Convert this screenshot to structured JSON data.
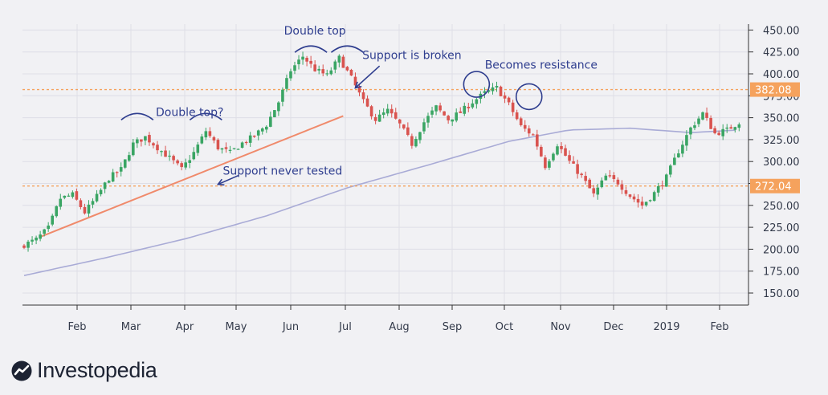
{
  "chart_data": {
    "type": "candlestick",
    "x_ticks": [
      "Feb",
      "Mar",
      "Apr",
      "May",
      "Jun",
      "Jul",
      "Aug",
      "Sep",
      "Oct",
      "Nov",
      "Dec",
      "2019",
      "Feb"
    ],
    "y_ticks": [
      "150.00",
      "175.00",
      "200.00",
      "225.00",
      "250.00",
      "275.00",
      "300.00",
      "325.00",
      "350.00",
      "375.00",
      "400.00",
      "425.00",
      "450.00"
    ],
    "ylim": [
      140,
      460
    ],
    "grid": true,
    "axis_position": "right",
    "price_levels": [
      {
        "label": "382.08",
        "value": 382.08,
        "color": "#f5a25d"
      },
      {
        "label": "272.04",
        "value": 272.04,
        "color": "#f5a25d"
      }
    ],
    "close_path": [
      [
        0,
        205
      ],
      [
        3,
        211
      ],
      [
        6,
        224
      ],
      [
        9,
        258
      ],
      [
        12,
        262
      ],
      [
        15,
        242
      ],
      [
        18,
        260
      ],
      [
        21,
        281
      ],
      [
        24,
        291
      ],
      [
        27,
        320
      ],
      [
        30,
        328
      ],
      [
        33,
        316
      ],
      [
        36,
        304
      ],
      [
        39,
        291
      ],
      [
        42,
        310
      ],
      [
        45,
        335
      ],
      [
        48,
        316
      ],
      [
        51,
        310
      ],
      [
        54,
        321
      ],
      [
        57,
        329
      ],
      [
        60,
        342
      ],
      [
        63,
        368
      ],
      [
        66,
        404
      ],
      [
        69,
        420
      ],
      [
        72,
        405
      ],
      [
        75,
        398
      ],
      [
        78,
        418
      ],
      [
        81,
        395
      ],
      [
        84,
        368
      ],
      [
        87,
        348
      ],
      [
        90,
        358
      ],
      [
        93,
        342
      ],
      [
        96,
        320
      ],
      [
        99,
        345
      ],
      [
        102,
        362
      ],
      [
        105,
        348
      ],
      [
        108,
        356
      ],
      [
        111,
        368
      ],
      [
        114,
        378
      ],
      [
        117,
        384
      ],
      [
        120,
        365
      ],
      [
        123,
        340
      ],
      [
        126,
        330
      ],
      [
        129,
        295
      ],
      [
        132,
        320
      ],
      [
        135,
        300
      ],
      [
        138,
        283
      ],
      [
        141,
        262
      ],
      [
        144,
        283
      ],
      [
        147,
        276
      ],
      [
        150,
        261
      ],
      [
        153,
        250
      ],
      [
        156,
        264
      ],
      [
        159,
        282
      ],
      [
        162,
        312
      ],
      [
        165,
        338
      ],
      [
        168,
        355
      ],
      [
        171,
        332
      ],
      [
        174,
        336
      ],
      [
        177,
        345
      ]
    ],
    "moving_average": [
      [
        0,
        170
      ],
      [
        20,
        190
      ],
      [
        40,
        212
      ],
      [
        60,
        238
      ],
      [
        80,
        270
      ],
      [
        100,
        296
      ],
      [
        120,
        323
      ],
      [
        135,
        336
      ],
      [
        150,
        338
      ],
      [
        165,
        333
      ],
      [
        177,
        336
      ]
    ],
    "trendline": {
      "from": [
        4,
        214
      ],
      "to": [
        79,
        352
      ],
      "color": "#f08a6b"
    },
    "annotations": [
      {
        "text": "Double top?",
        "at": [
          41,
          352
        ]
      },
      {
        "text": "Support never tested",
        "at": [
          64,
          285
        ]
      },
      {
        "text": "Double top",
        "at": [
          72,
          445
        ]
      },
      {
        "text": "Support is broken",
        "at": [
          96,
          417
        ]
      },
      {
        "text": "Becomes resistance",
        "at": [
          128,
          406
        ]
      }
    ],
    "arcs": [
      [
        28,
        353
      ],
      [
        45,
        353
      ],
      [
        71,
        430
      ],
      [
        80,
        430
      ]
    ],
    "circles": [
      [
        112,
        388
      ],
      [
        125,
        374
      ]
    ],
    "arrows": [
      {
        "from": [
          88,
          409
        ],
        "to": [
          82,
          384
        ]
      },
      {
        "from": [
          53,
          284
        ],
        "to": [
          48,
          274
        ]
      }
    ]
  },
  "brand": {
    "name": "Investopedia",
    "mark": "investopedia-logo-icon"
  }
}
